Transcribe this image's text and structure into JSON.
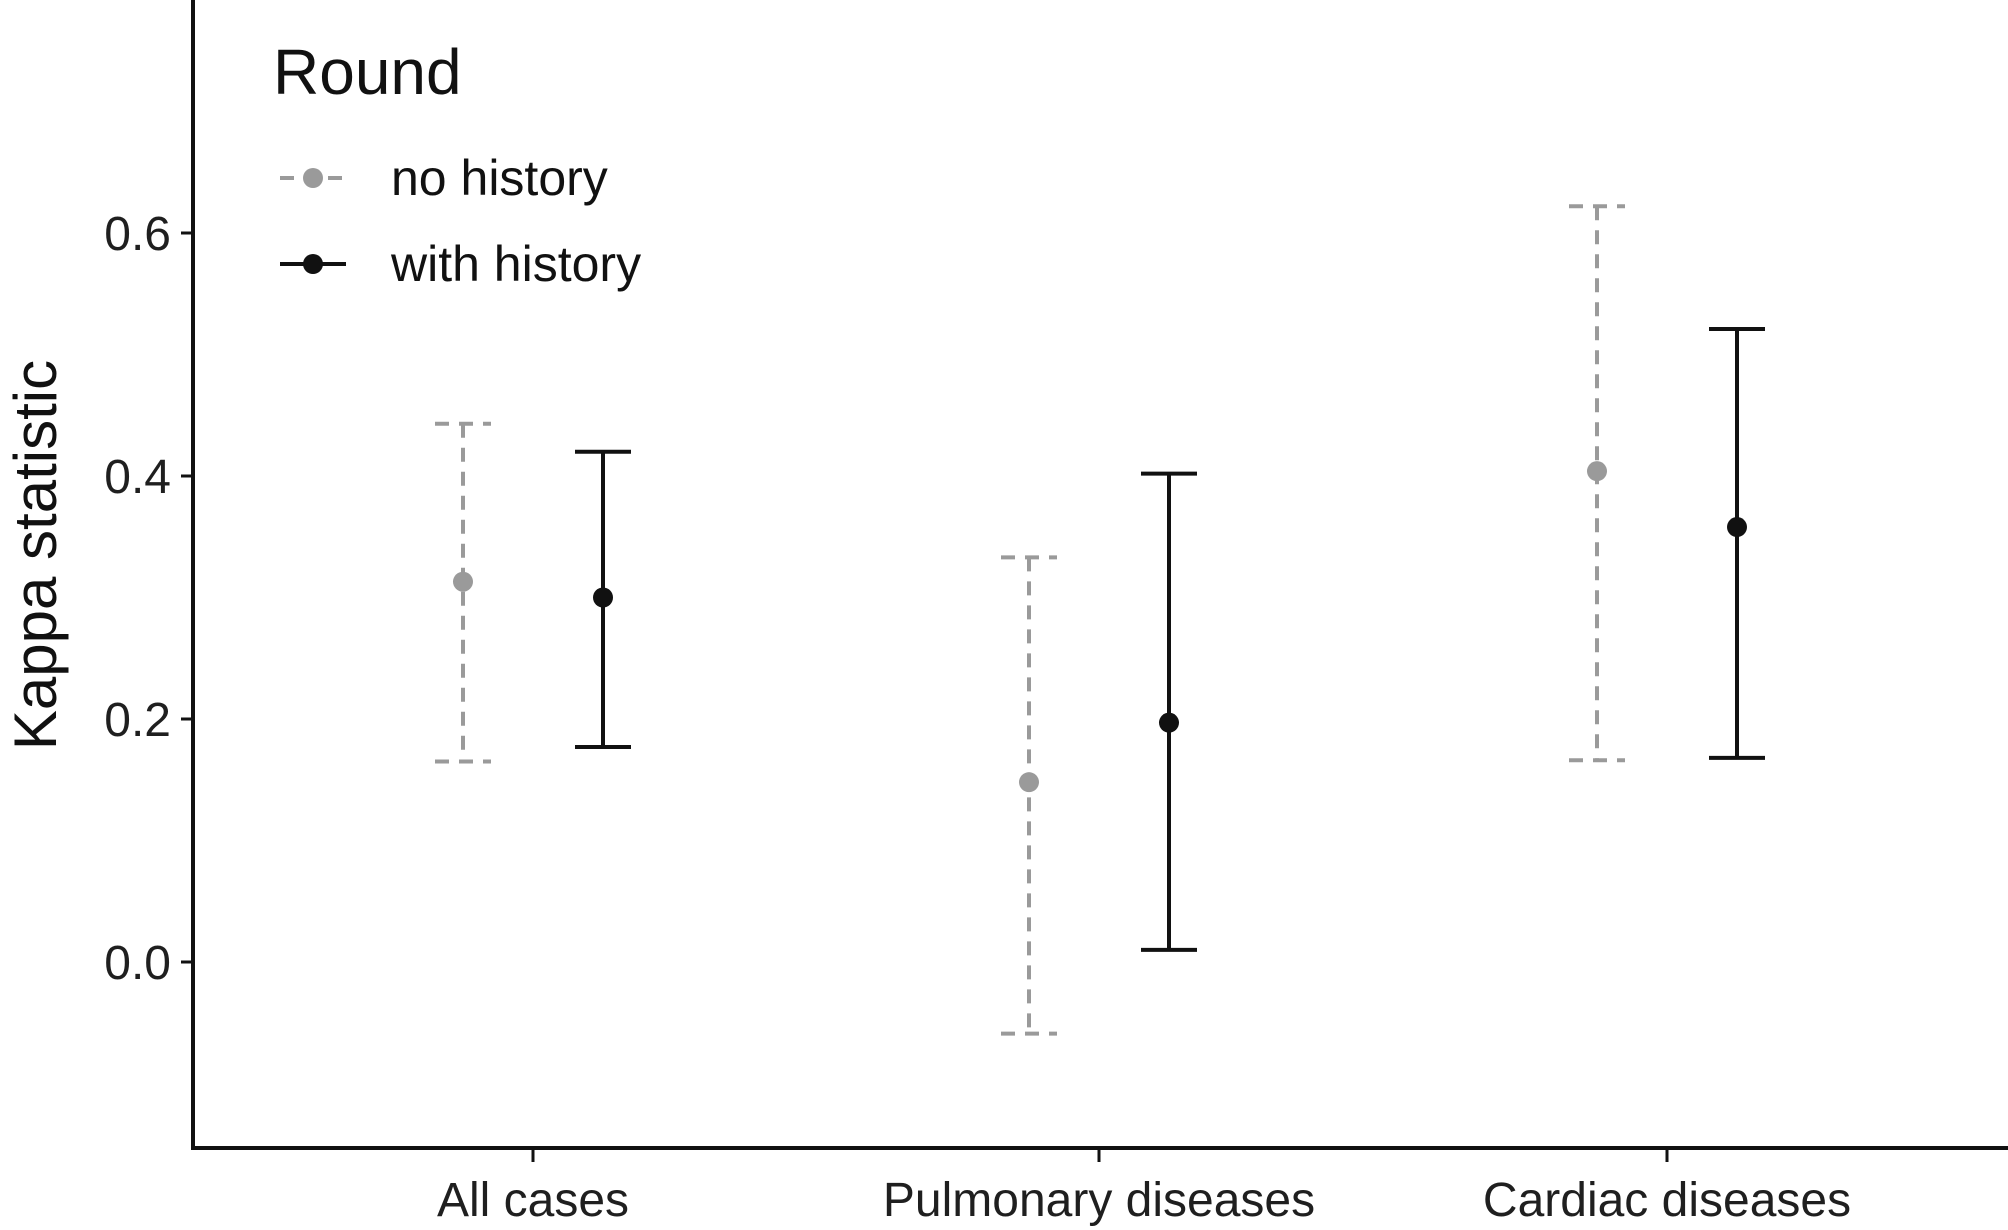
{
  "chart_data": {
    "type": "scatter",
    "subtype": "point-with-error-bars",
    "title": "",
    "xlabel": "",
    "ylabel": "Kappa statistic",
    "categories": [
      "All cases",
      "Pulmonary diseases",
      "Cardiac diseases"
    ],
    "ylim": [
      -0.15,
      0.8
    ],
    "yticks": [
      0.0,
      0.2,
      0.4,
      0.6
    ],
    "ytick_labels": [
      "0.0",
      "0.2",
      "0.4",
      "0.6"
    ],
    "grid": false,
    "legend": {
      "title": "Round",
      "placement": "top-left"
    },
    "series": [
      {
        "name": "no history",
        "color": "#9a9a9a",
        "line_style": "dashed",
        "values": [
          0.313,
          0.148,
          0.404
        ],
        "lower": [
          0.165,
          -0.059,
          0.166
        ],
        "upper": [
          0.443,
          0.333,
          0.622
        ]
      },
      {
        "name": "with history",
        "color": "#111111",
        "line_style": "solid",
        "values": [
          0.3,
          0.197,
          0.358
        ],
        "lower": [
          0.177,
          0.01,
          0.168
        ],
        "upper": [
          0.42,
          0.402,
          0.521
        ]
      }
    ]
  }
}
